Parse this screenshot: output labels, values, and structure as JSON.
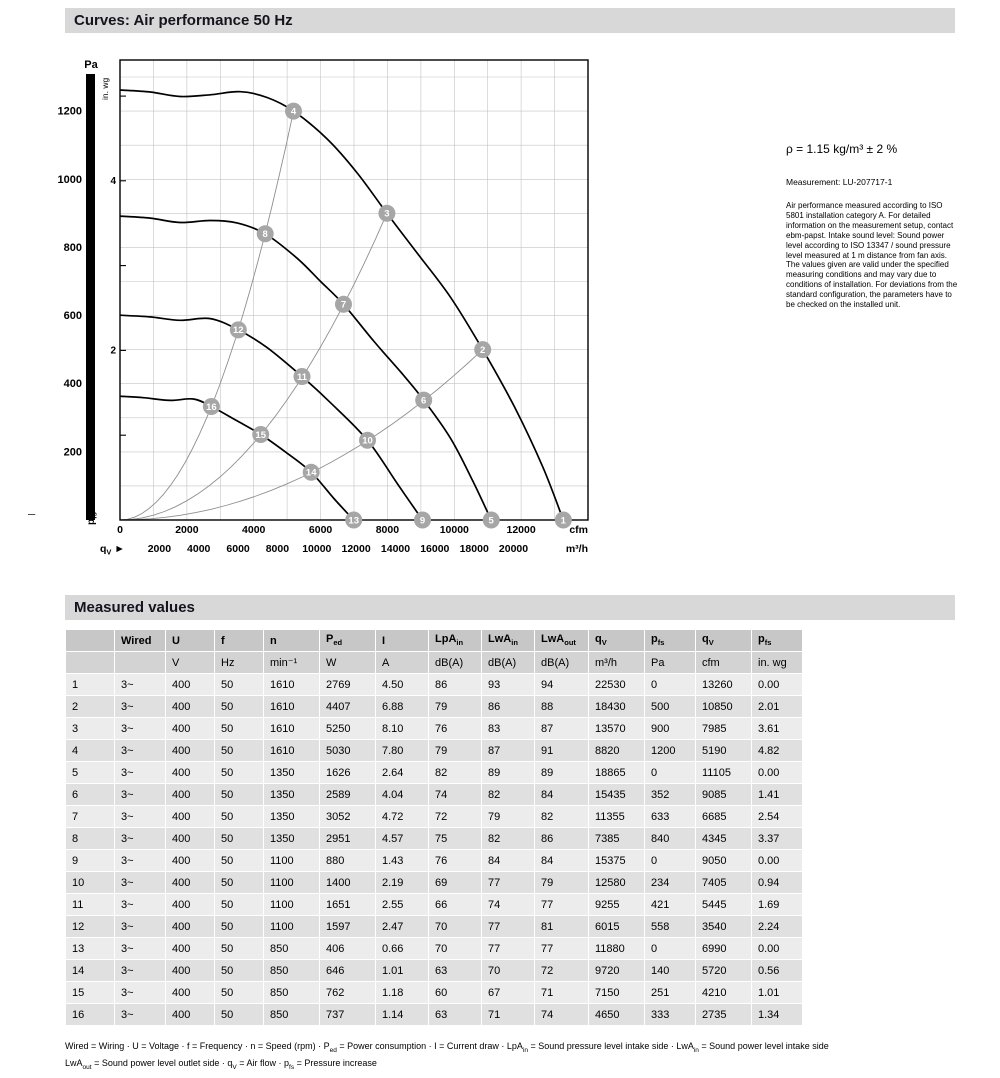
{
  "page": {
    "curves_title": "Curves: Air performance 50 Hz",
    "margin_mark": "–"
  },
  "side_panel": {
    "density_note": "ρ = 1.15 kg/m³ ± 2 %",
    "measurement_ref": "Measurement: LU-207717-1",
    "description": "Air performance measured according to ISO 5801 installation category A. For detailed information on the measurement setup, contact ebm-papst. Intake sound level: Sound power level according to ISO 13347 / sound pressure level measured at 1 m distance from fan axis. The values given are valid under the specified measuring conditions and may vary due to conditions of installation. For deviations from the standard configuration, the parameters have to be checked on the installed unit."
  },
  "chart_data": {
    "type": "line",
    "title": "Air performance curves 50 Hz",
    "colors": {
      "fan_curve": "#000000",
      "system_curve": "#8f8f8f",
      "grid": "#c4c4c4",
      "marker": "#a6a6a6",
      "marker_text": "#ffffff",
      "axis_bar": "#000000"
    },
    "y_axis": {
      "title": "Pa",
      "secondary_title": "in. wg",
      "pressure_symbol": "p",
      "pressure_sub": "fs",
      "ylim_pa": [
        0,
        1350
      ],
      "ticks_pa": [
        200,
        400,
        600,
        800,
        1000,
        1200
      ],
      "ticks_inwg": [
        2,
        4
      ],
      "pa_per_inwg": 248.84
    },
    "x_axis": {
      "unit_primary": "cfm",
      "unit_secondary": "m³/h",
      "flow_symbol": "q",
      "flow_sub": "V",
      "arrow": "►",
      "xlim_cfm": [
        0,
        14000
      ],
      "ticks_cfm": [
        0,
        2000,
        4000,
        6000,
        8000,
        10000,
        12000
      ],
      "ticks_m3h": [
        2000,
        4000,
        6000,
        8000,
        10000,
        12000,
        14000,
        16000,
        18000,
        20000
      ],
      "m3h_per_cfm": 1.699
    },
    "grid": {
      "x_step_cfm": 1000,
      "y_step_pa": 100
    },
    "fan_curves": [
      {
        "name": "1610 min⁻¹",
        "points_cfm_pa": [
          [
            0,
            1262
          ],
          [
            900,
            1256
          ],
          [
            1800,
            1243
          ],
          [
            2700,
            1248
          ],
          [
            3600,
            1257
          ],
          [
            4400,
            1240
          ],
          [
            5190,
            1200
          ],
          [
            6200,
            1118
          ],
          [
            7100,
            1018
          ],
          [
            7985,
            900
          ],
          [
            8900,
            782
          ],
          [
            9900,
            652
          ],
          [
            10850,
            500
          ],
          [
            11800,
            332
          ],
          [
            12650,
            155
          ],
          [
            13260,
            0
          ]
        ]
      },
      {
        "name": "1350 min⁻¹",
        "points_cfm_pa": [
          [
            0,
            892
          ],
          [
            900,
            886
          ],
          [
            1800,
            873
          ],
          [
            2700,
            879
          ],
          [
            3500,
            872
          ],
          [
            4345,
            840
          ],
          [
            5300,
            768
          ],
          [
            6000,
            700
          ],
          [
            6685,
            633
          ],
          [
            7600,
            524
          ],
          [
            8400,
            434
          ],
          [
            9085,
            352
          ],
          [
            9900,
            238
          ],
          [
            10550,
            115
          ],
          [
            11105,
            0
          ]
        ]
      },
      {
        "name": "1100 min⁻¹",
        "points_cfm_pa": [
          [
            0,
            601
          ],
          [
            900,
            596
          ],
          [
            1800,
            586
          ],
          [
            2700,
            591
          ],
          [
            3540,
            558
          ],
          [
            4400,
            506
          ],
          [
            5445,
            421
          ],
          [
            6300,
            344
          ],
          [
            7405,
            234
          ],
          [
            8300,
            106
          ],
          [
            9050,
            0
          ]
        ]
      },
      {
        "name": "850 min⁻¹",
        "points_cfm_pa": [
          [
            0,
            363
          ],
          [
            700,
            359
          ],
          [
            1500,
            351
          ],
          [
            2200,
            355
          ],
          [
            2735,
            333
          ],
          [
            3500,
            291
          ],
          [
            4210,
            251
          ],
          [
            5000,
            196
          ],
          [
            5720,
            140
          ],
          [
            6400,
            63
          ],
          [
            6990,
            0
          ]
        ]
      }
    ],
    "system_curves": [
      {
        "through_points": "4-8-12-16",
        "k_pa_per_cfm2": 4.455e-05,
        "q_end_cfm": 5190
      },
      {
        "through_points": "3-7-11-15",
        "k_pa_per_cfm2": 1.4115e-05,
        "q_end_cfm": 7985
      },
      {
        "through_points": "2-6-10-14",
        "k_pa_per_cfm2": 4.2475e-06,
        "q_end_cfm": 10850
      }
    ],
    "operating_points": [
      {
        "label": "1",
        "cfm": 13260,
        "pa": 0
      },
      {
        "label": "2",
        "cfm": 10850,
        "pa": 500
      },
      {
        "label": "3",
        "cfm": 7985,
        "pa": 900
      },
      {
        "label": "4",
        "cfm": 5190,
        "pa": 1200
      },
      {
        "label": "5",
        "cfm": 11105,
        "pa": 0
      },
      {
        "label": "6",
        "cfm": 9085,
        "pa": 352
      },
      {
        "label": "7",
        "cfm": 6685,
        "pa": 633
      },
      {
        "label": "8",
        "cfm": 4345,
        "pa": 840
      },
      {
        "label": "9",
        "cfm": 9050,
        "pa": 0
      },
      {
        "label": "10",
        "cfm": 7405,
        "pa": 234
      },
      {
        "label": "11",
        "cfm": 5445,
        "pa": 421
      },
      {
        "label": "12",
        "cfm": 3540,
        "pa": 558
      },
      {
        "label": "13",
        "cfm": 6990,
        "pa": 0
      },
      {
        "label": "14",
        "cfm": 5720,
        "pa": 140
      },
      {
        "label": "15",
        "cfm": 4210,
        "pa": 251
      },
      {
        "label": "16",
        "cfm": 2735,
        "pa": 333
      }
    ]
  },
  "table": {
    "section_title": "Measured values",
    "columns": [
      {
        "base": "",
        "sub": "",
        "unit": ""
      },
      {
        "base": "Wired",
        "sub": "",
        "unit": ""
      },
      {
        "base": "U",
        "sub": "",
        "unit": "V"
      },
      {
        "base": "f",
        "sub": "",
        "unit": "Hz"
      },
      {
        "base": "n",
        "sub": "",
        "unit": "min⁻¹"
      },
      {
        "base": "P",
        "sub": "ed",
        "unit": "W"
      },
      {
        "base": "I",
        "sub": "",
        "unit": "A"
      },
      {
        "base": "LpA",
        "sub": "in",
        "unit": "dB(A)"
      },
      {
        "base": "LwA",
        "sub": "in",
        "unit": "dB(A)"
      },
      {
        "base": "LwA",
        "sub": "out",
        "unit": "dB(A)"
      },
      {
        "base": "q",
        "sub": "V",
        "unit": "m³/h"
      },
      {
        "base": "p",
        "sub": "fs",
        "unit": "Pa"
      },
      {
        "base": "q",
        "sub": "V",
        "unit": "cfm"
      },
      {
        "base": "p",
        "sub": "fs",
        "unit": "in. wg"
      }
    ],
    "rows": [
      [
        "1",
        "3~",
        "400",
        "50",
        "1610",
        "2769",
        "4.50",
        "86",
        "93",
        "94",
        "22530",
        "0",
        "13260",
        "0.00"
      ],
      [
        "2",
        "3~",
        "400",
        "50",
        "1610",
        "4407",
        "6.88",
        "79",
        "86",
        "88",
        "18430",
        "500",
        "10850",
        "2.01"
      ],
      [
        "3",
        "3~",
        "400",
        "50",
        "1610",
        "5250",
        "8.10",
        "76",
        "83",
        "87",
        "13570",
        "900",
        "7985",
        "3.61"
      ],
      [
        "4",
        "3~",
        "400",
        "50",
        "1610",
        "5030",
        "7.80",
        "79",
        "87",
        "91",
        "8820",
        "1200",
        "5190",
        "4.82"
      ],
      [
        "5",
        "3~",
        "400",
        "50",
        "1350",
        "1626",
        "2.64",
        "82",
        "89",
        "89",
        "18865",
        "0",
        "11105",
        "0.00"
      ],
      [
        "6",
        "3~",
        "400",
        "50",
        "1350",
        "2589",
        "4.04",
        "74",
        "82",
        "84",
        "15435",
        "352",
        "9085",
        "1.41"
      ],
      [
        "7",
        "3~",
        "400",
        "50",
        "1350",
        "3052",
        "4.72",
        "72",
        "79",
        "82",
        "11355",
        "633",
        "6685",
        "2.54"
      ],
      [
        "8",
        "3~",
        "400",
        "50",
        "1350",
        "2951",
        "4.57",
        "75",
        "82",
        "86",
        "7385",
        "840",
        "4345",
        "3.37"
      ],
      [
        "9",
        "3~",
        "400",
        "50",
        "1100",
        "880",
        "1.43",
        "76",
        "84",
        "84",
        "15375",
        "0",
        "9050",
        "0.00"
      ],
      [
        "10",
        "3~",
        "400",
        "50",
        "1100",
        "1400",
        "2.19",
        "69",
        "77",
        "79",
        "12580",
        "234",
        "7405",
        "0.94"
      ],
      [
        "11",
        "3~",
        "400",
        "50",
        "1100",
        "1651",
        "2.55",
        "66",
        "74",
        "77",
        "9255",
        "421",
        "5445",
        "1.69"
      ],
      [
        "12",
        "3~",
        "400",
        "50",
        "1100",
        "1597",
        "2.47",
        "70",
        "77",
        "81",
        "6015",
        "558",
        "3540",
        "2.24"
      ],
      [
        "13",
        "3~",
        "400",
        "50",
        "850",
        "406",
        "0.66",
        "70",
        "77",
        "77",
        "11880",
        "0",
        "6990",
        "0.00"
      ],
      [
        "14",
        "3~",
        "400",
        "50",
        "850",
        "646",
        "1.01",
        "63",
        "70",
        "72",
        "9720",
        "140",
        "5720",
        "0.56"
      ],
      [
        "15",
        "3~",
        "400",
        "50",
        "850",
        "762",
        "1.18",
        "60",
        "67",
        "71",
        "7150",
        "251",
        "4210",
        "1.01"
      ],
      [
        "16",
        "3~",
        "400",
        "50",
        "850",
        "737",
        "1.14",
        "63",
        "71",
        "74",
        "4650",
        "333",
        "2735",
        "1.34"
      ]
    ],
    "footnotes": [
      [
        [
          "t",
          "Wired = Wiring · U = Voltage · f = Frequency · n = Speed (rpm) · P"
        ],
        [
          "sub",
          "ed"
        ],
        [
          "t",
          " = Power consumption · I = Current draw · LpA"
        ],
        [
          "sub",
          "in"
        ],
        [
          "t",
          " = Sound pressure level intake side · LwA"
        ],
        [
          "sub",
          "in"
        ],
        [
          "t",
          " = Sound power level intake side"
        ]
      ],
      [
        [
          "t",
          "LwA"
        ],
        [
          "sub",
          "out"
        ],
        [
          "t",
          " = Sound power level outlet side · q"
        ],
        [
          "sub",
          "V"
        ],
        [
          "t",
          " = Air flow · p"
        ],
        [
          "sub",
          "fs"
        ],
        [
          "t",
          " = Pressure increase"
        ]
      ]
    ]
  }
}
